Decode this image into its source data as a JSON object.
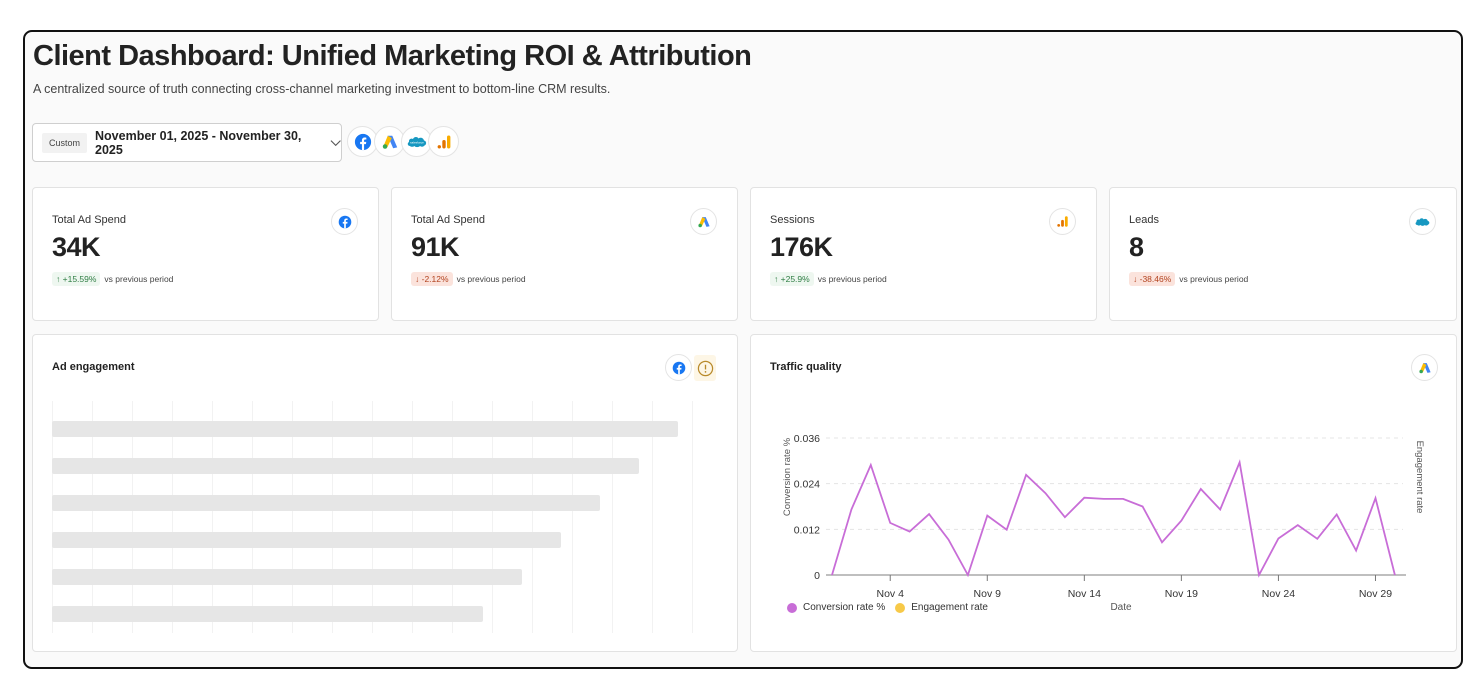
{
  "header": {
    "title": "Client Dashboard: Unified Marketing ROI & Attribution",
    "subtitle": "A centralized source of truth connecting cross-channel marketing investment to bottom-line CRM results."
  },
  "date_picker": {
    "preset": "Custom",
    "range": "November 01, 2025 - November 30, 2025"
  },
  "sources": [
    {
      "name": "facebook",
      "icon": "facebook-icon"
    },
    {
      "name": "google-ads",
      "icon": "google-ads-icon"
    },
    {
      "name": "salesforce",
      "icon": "salesforce-icon"
    },
    {
      "name": "google-analytics",
      "icon": "google-analytics-icon"
    }
  ],
  "kpis": [
    {
      "label": "Total Ad Spend",
      "value": "34K",
      "delta": "+15.59%",
      "direction": "up",
      "suffix": "vs previous period",
      "source_icon": "facebook-icon"
    },
    {
      "label": "Total Ad Spend",
      "value": "91K",
      "delta": "-2.12%",
      "direction": "down",
      "suffix": "vs previous period",
      "source_icon": "google-ads-icon"
    },
    {
      "label": "Sessions",
      "value": "176K",
      "delta": "+25.9%",
      "direction": "up",
      "suffix": "vs previous period",
      "source_icon": "google-analytics-icon"
    },
    {
      "label": "Leads",
      "value": "8",
      "delta": "-38.46%",
      "direction": "down",
      "suffix": "vs previous period",
      "source_icon": "salesforce-icon"
    }
  ],
  "ad_engagement": {
    "title": "Ad engagement",
    "state": "loading",
    "source_icon": "facebook-icon",
    "status_icon": "warning-icon"
  },
  "traffic_quality": {
    "title": "Traffic quality",
    "source_icon": "google-ads-icon"
  },
  "colors": {
    "conversion": "#c86dd7",
    "engagement": "#f7c948",
    "up_text": "#2e7d43",
    "down_text": "#b2431f"
  },
  "chart_data": {
    "type": "line",
    "title": "Traffic quality",
    "xlabel": "Date",
    "ylabel": "Conversion rate %",
    "y2label": "Engagement rate",
    "ylim": [
      0,
      0.036
    ],
    "yticks": [
      "0",
      "0.012",
      "0.024",
      "0.036"
    ],
    "ytick_values": [
      0,
      0.012,
      0.024,
      0.036
    ],
    "xticks": [
      "Nov 4",
      "Nov 9",
      "Nov 14",
      "Nov 19",
      "Nov 24",
      "Nov 29"
    ],
    "xtick_days": [
      4,
      9,
      14,
      19,
      24,
      29
    ],
    "grid": true,
    "legend_position": "bottom-left",
    "x": [
      "Nov 1",
      "Nov 2",
      "Nov 3",
      "Nov 4",
      "Nov 5",
      "Nov 6",
      "Nov 7",
      "Nov 8",
      "Nov 9",
      "Nov 10",
      "Nov 11",
      "Nov 12",
      "Nov 13",
      "Nov 14",
      "Nov 15",
      "Nov 16",
      "Nov 17",
      "Nov 18",
      "Nov 19",
      "Nov 20",
      "Nov 21",
      "Nov 22",
      "Nov 23",
      "Nov 24",
      "Nov 25",
      "Nov 26",
      "Nov 27",
      "Nov 28",
      "Nov 29",
      "Nov 30"
    ],
    "series": [
      {
        "name": "Conversion rate %",
        "color": "#c86dd7",
        "values": [
          0,
          0.0172,
          0.0289,
          0.0137,
          0.0114,
          0.016,
          0.0093,
          0,
          0.0156,
          0.0119,
          0.0263,
          0.0215,
          0.0152,
          0.0203,
          0.02,
          0.02,
          0.018,
          0.0086,
          0.0143,
          0.0226,
          0.0172,
          0.0296,
          0,
          0.0096,
          0.0131,
          0.0095,
          0.0159,
          0.0064,
          0.0202,
          0
        ]
      },
      {
        "name": "Engagement rate",
        "color": "#f7c948",
        "values": []
      }
    ]
  }
}
